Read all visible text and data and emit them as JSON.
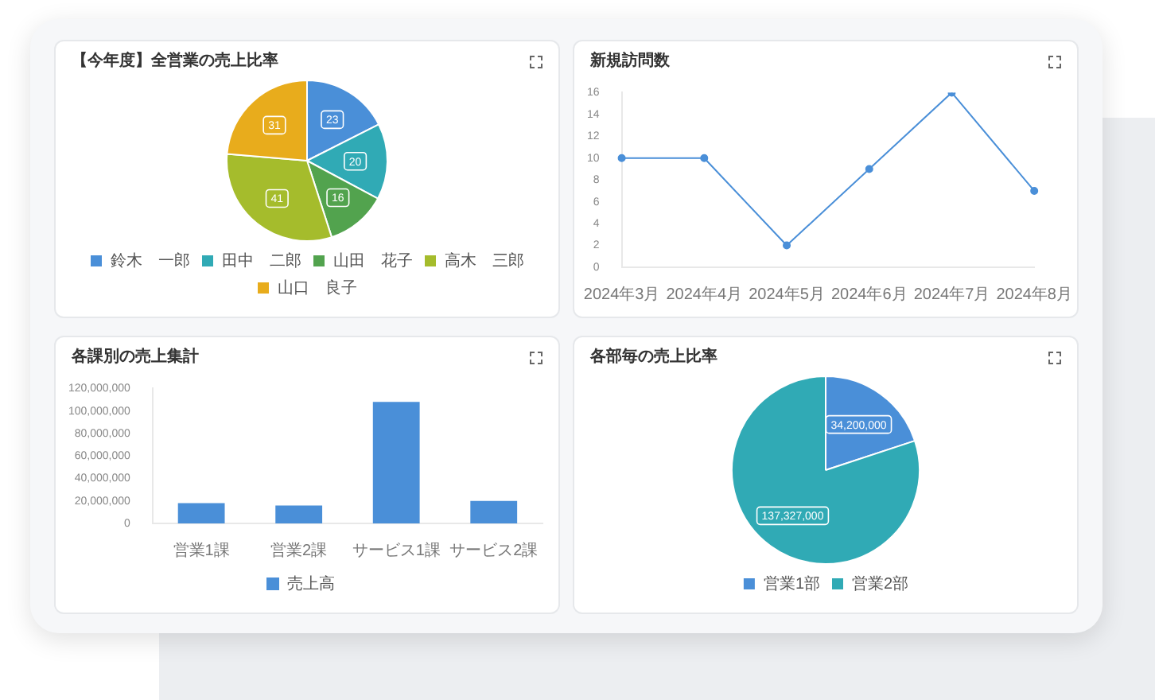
{
  "chart_data": [
    {
      "type": "pie",
      "title": "【今年度】全営業の売上比率",
      "categories": [
        "鈴木　一郎",
        "田中　二郎",
        "山田　花子",
        "高木　三郎",
        "山口　良子"
      ],
      "values": [
        23,
        20,
        16,
        41,
        31
      ],
      "colors": [
        "#4a8fd8",
        "#30aab5",
        "#52a34e",
        "#a5bc2c",
        "#e8ac1c"
      ],
      "data_labels": true,
      "legend": "bottom"
    },
    {
      "type": "line",
      "title": "新規訪問数",
      "categories": [
        "2024年3月",
        "2024年4月",
        "2024年5月",
        "2024年6月",
        "2024年7月",
        "2024年8月"
      ],
      "series": [
        {
          "color": "#4a8fd8",
          "values": [
            10,
            10,
            2,
            9,
            16,
            7
          ]
        }
      ],
      "ylim": [
        0,
        16
      ],
      "yticks": [
        0,
        2,
        4,
        6,
        8,
        10,
        12,
        14,
        16
      ],
      "marker": "circle"
    },
    {
      "type": "bar",
      "title": "各課別の売上集計",
      "categories": [
        "営業1課",
        "営業2課",
        "サービス1課",
        "サービス2課"
      ],
      "series": [
        {
          "name": "売上高",
          "color": "#4a8fd8",
          "values": [
            18000000,
            16000000,
            108000000,
            20000000
          ]
        }
      ],
      "ylim": [
        0,
        120000000
      ],
      "yticks": [
        0,
        {
          "value": 20000000,
          "label": "20,000,000"
        },
        {
          "value": 40000000,
          "label": "40,000,000"
        },
        {
          "value": 60000000,
          "label": "60,000,000"
        },
        {
          "value": 80000000,
          "label": "80,000,000"
        },
        {
          "value": 100000000,
          "label": "100,000,000"
        },
        {
          "value": 120000000,
          "label": "120,000,000"
        }
      ],
      "legend": "bottom"
    },
    {
      "type": "pie",
      "title": "各部毎の売上比率",
      "categories": [
        "営業1部",
        "営業2部"
      ],
      "values": [
        34200000,
        137327000
      ],
      "colors": [
        "#4a8fd8",
        "#30aab5"
      ],
      "value_labels": [
        "34,200,000",
        "137,327,000"
      ],
      "legend": "bottom"
    }
  ]
}
